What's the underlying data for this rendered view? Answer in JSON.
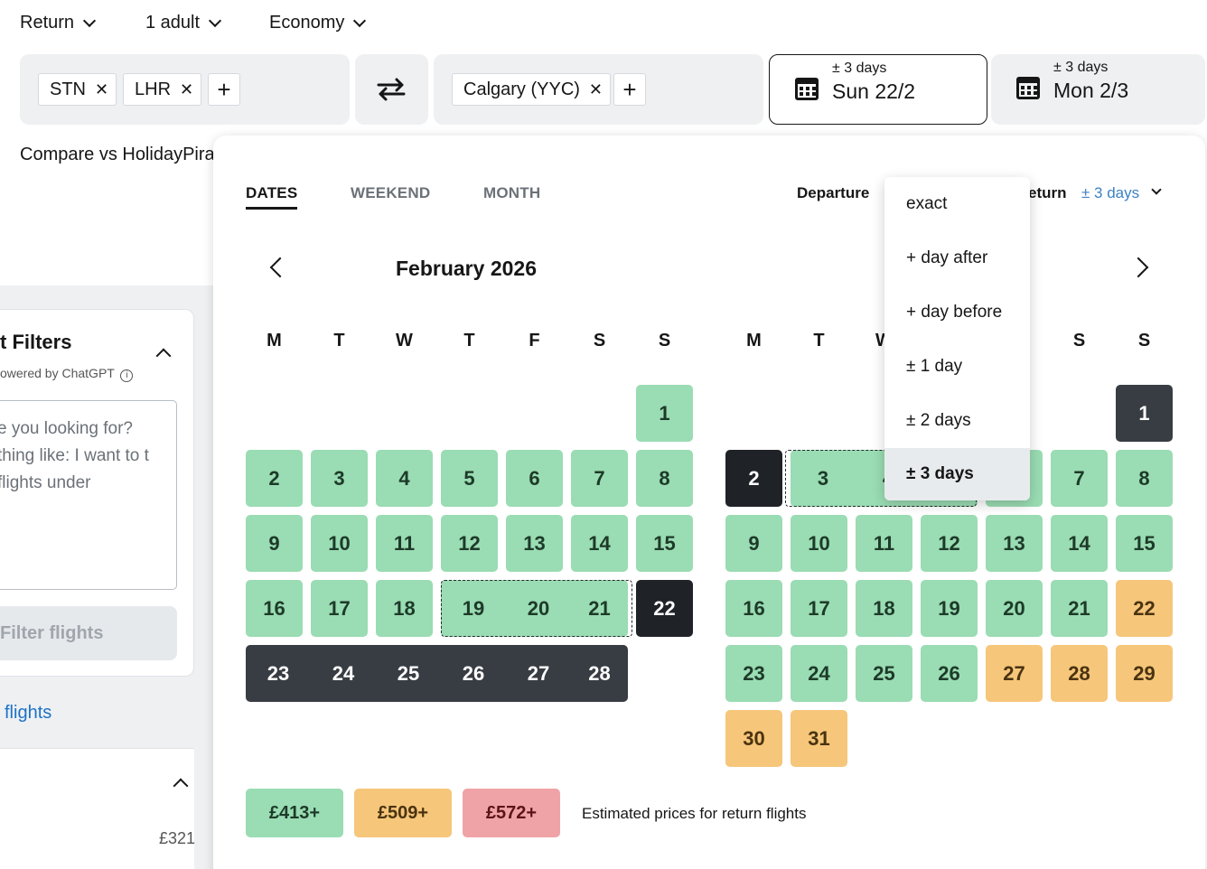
{
  "search": {
    "trip_type": "Return",
    "passengers": "1 adult",
    "cabin": "Economy",
    "origins": [
      "STN",
      "LHR"
    ],
    "destination": "Calgary (YYC)",
    "departure": {
      "flex": "± 3 days",
      "date": "Sun 22/2"
    },
    "return": {
      "flex": "± 3 days",
      "date": "Mon 2/3"
    },
    "compare_text": "Compare vs HolidayPira"
  },
  "left_panel": {
    "filters_title": "t Filters",
    "powered_by": "owered by ChatGPT",
    "textarea_text": "e you looking for? thing like: I want to t flights under",
    "filter_button": "Filter flights",
    "link_text": "flights",
    "price": "£321"
  },
  "calendar": {
    "tabs": [
      "DATES",
      "WEEKEND",
      "MONTH"
    ],
    "departure_label": "Departure",
    "return_label": "eturn",
    "return_flex": "± 3 days",
    "month_title": "February 2026",
    "weekdays_left": [
      "M",
      "T",
      "W",
      "T",
      "F",
      "S",
      "S"
    ],
    "weekdays_right": [
      "M",
      "T",
      "W",
      "S",
      "S"
    ],
    "feb_days": [
      "1",
      "2",
      "3",
      "4",
      "5",
      "6",
      "7",
      "8",
      "9",
      "10",
      "11",
      "12",
      "13",
      "14",
      "15",
      "16",
      "17",
      "18",
      "19",
      "20",
      "21",
      "22",
      "23",
      "24",
      "25",
      "26",
      "27",
      "28"
    ],
    "mar_days": [
      "1",
      "2",
      "3",
      "4",
      "7",
      "8",
      "9",
      "10",
      "11",
      "12",
      "13",
      "14",
      "15",
      "16",
      "17",
      "18",
      "19",
      "20",
      "21",
      "22",
      "23",
      "24",
      "25",
      "26",
      "27",
      "28",
      "29",
      "30",
      "31"
    ]
  },
  "dropdown": {
    "options": [
      "exact",
      "+ day after",
      "+ day before",
      "± 1 day",
      "± 2 days",
      "± 3 days"
    ],
    "selected": "± 3 days"
  },
  "legend": {
    "green": "£413+",
    "orange": "£509+",
    "red": "£572+",
    "caption": "Estimated prices for return flights"
  },
  "colors": {
    "green": "#9adcb3",
    "orange": "#f6c67a",
    "red": "#f0a3a6",
    "selected": "#1f2328",
    "accent": "#3b82c4"
  }
}
